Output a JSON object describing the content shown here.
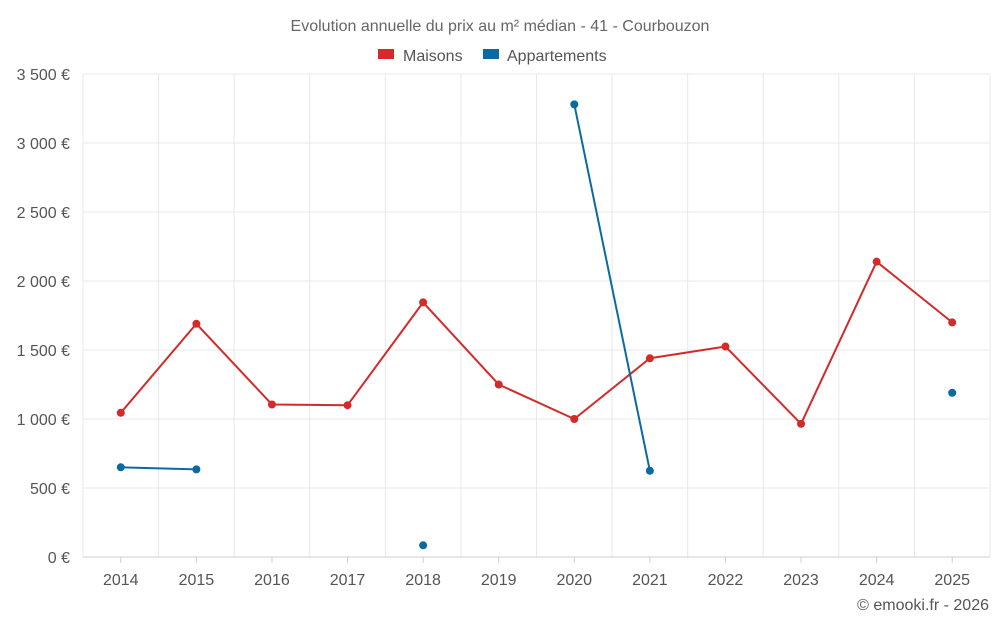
{
  "chart_data": {
    "type": "line",
    "title": "Evolution annuelle du prix au m² médian - 41 - Courbouzon",
    "categories": [
      "2014",
      "2015",
      "2016",
      "2017",
      "2018",
      "2019",
      "2020",
      "2021",
      "2022",
      "2023",
      "2024",
      "2025"
    ],
    "series": [
      {
        "name": "Maisons",
        "color": "#d32a2a",
        "values": [
          1045,
          1690,
          1105,
          1100,
          1845,
          1250,
          1000,
          1440,
          1525,
          965,
          2140,
          1700
        ]
      },
      {
        "name": "Appartements",
        "color": "#0b6aa2",
        "values": [
          650,
          635,
          null,
          null,
          85,
          null,
          3280,
          625,
          null,
          null,
          null,
          1190
        ]
      }
    ],
    "ylim": [
      0,
      3500
    ],
    "yticks": [
      0,
      500,
      1000,
      1500,
      2000,
      2500,
      3000,
      3500
    ],
    "ytick_labels": [
      "0 €",
      "500 €",
      "1 000 €",
      "1 500 €",
      "2 000 €",
      "2 500 €",
      "3 000 €",
      "3 500 €"
    ],
    "xlabel": "",
    "ylabel": "",
    "grid": true,
    "legend_position": "top-center"
  },
  "credit": "© emooki.fr - 2026"
}
